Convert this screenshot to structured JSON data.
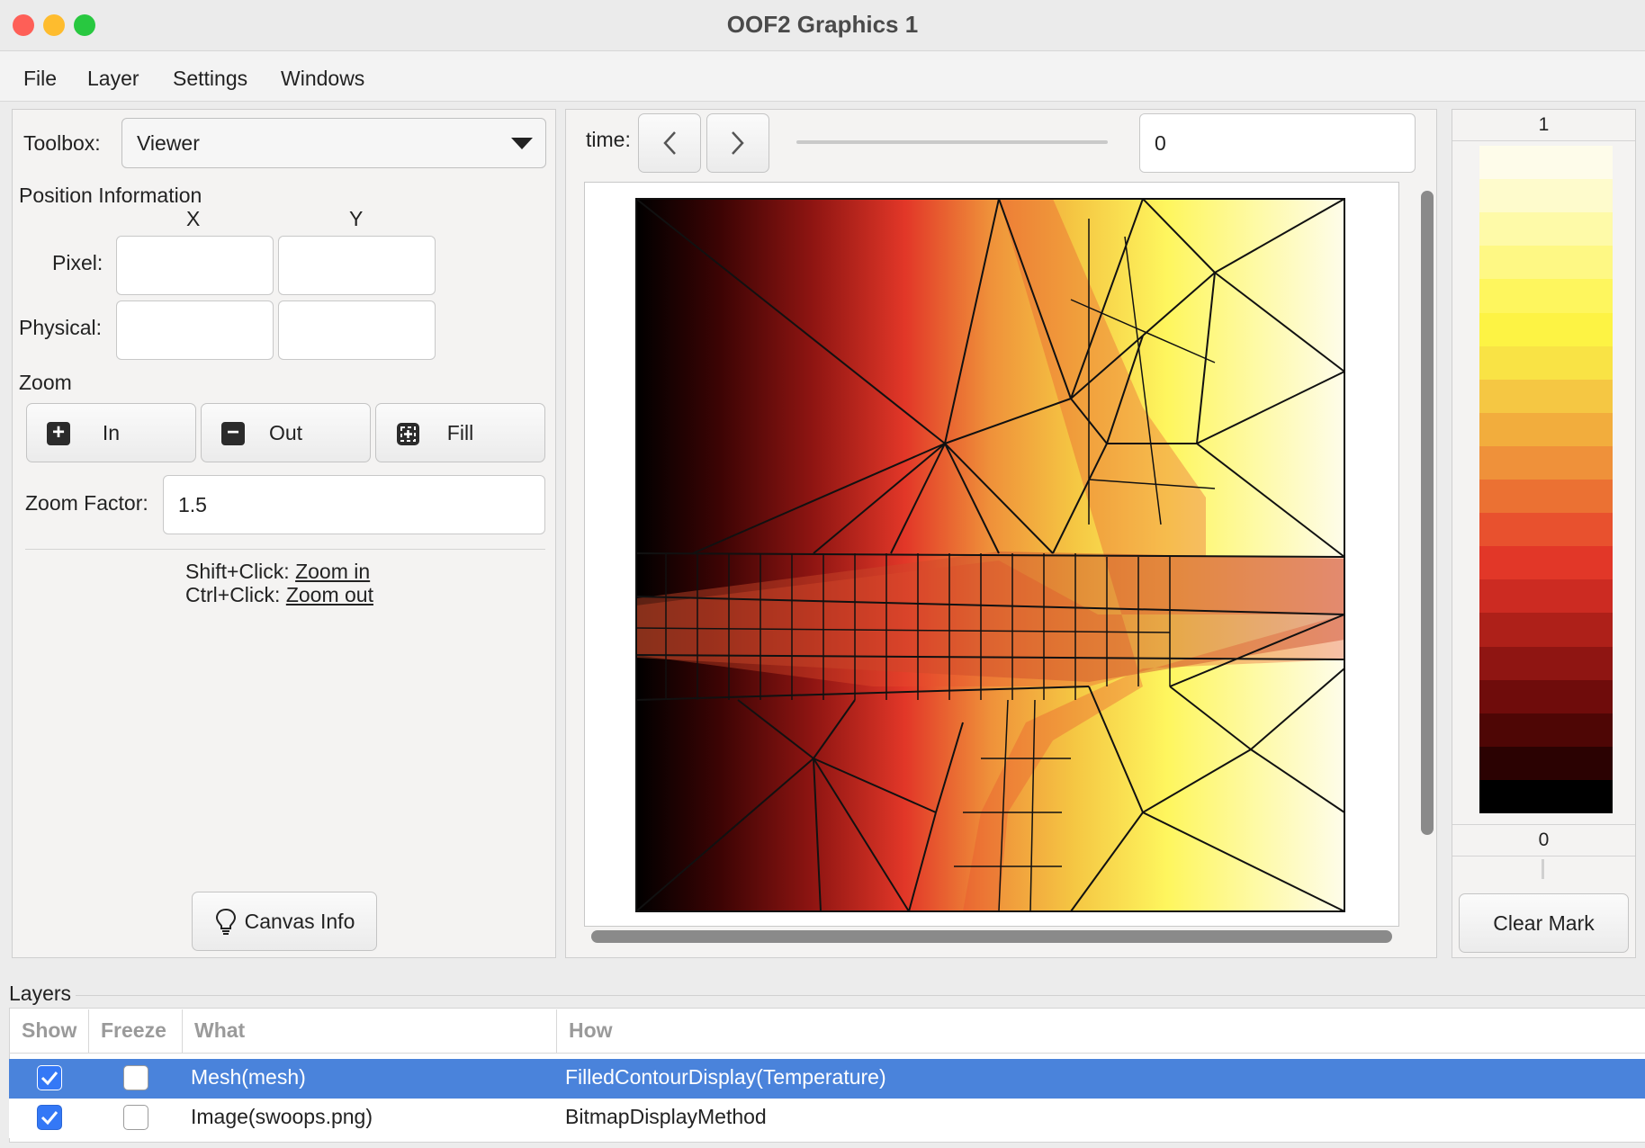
{
  "window": {
    "title": "OOF2 Graphics 1"
  },
  "menu": [
    "File",
    "Layer",
    "Settings",
    "Windows"
  ],
  "toolbox": {
    "label": "Toolbox:",
    "selected": "Viewer",
    "position_title": "Position Information",
    "col_x": "X",
    "col_y": "Y",
    "pixel_label": "Pixel:",
    "physical_label": "Physical:",
    "pixel_x": "",
    "pixel_y": "",
    "physical_x": "",
    "physical_y": "",
    "zoom_title": "Zoom",
    "zoom_in": "In",
    "zoom_out": "Out",
    "zoom_fill": "Fill",
    "zoom_factor_label": "Zoom Factor:",
    "zoom_factor": "1.5",
    "hint1_prefix": "Shift+Click:",
    "hint1_link": "Zoom in",
    "hint2_prefix": "Ctrl+Click:",
    "hint2_link": "Zoom out",
    "canvas_info": "Canvas Info"
  },
  "time": {
    "label": "time:",
    "value": "0"
  },
  "colorbar": {
    "max_label": "1",
    "min_label": "0",
    "clear_mark": "Clear Mark",
    "colors": [
      "#fefcea",
      "#fefbcc",
      "#fefaa8",
      "#fef884",
      "#fef65e",
      "#fdf344",
      "#f9e345",
      "#f5c743",
      "#f2ad3d",
      "#ef913a",
      "#eb7133",
      "#e8512e",
      "#e23728",
      "#cc2b22",
      "#ae2019",
      "#8f1512",
      "#6f0c0b",
      "#4e0605",
      "#2b0202",
      "#000000"
    ]
  },
  "layers": {
    "title": "Layers",
    "headers": [
      "Show",
      "Freeze",
      "What",
      "How"
    ],
    "rows": [
      {
        "show": true,
        "freeze": false,
        "what": "Mesh(mesh)",
        "how": "FilledContourDisplay(Temperature)",
        "selected": true
      },
      {
        "show": true,
        "freeze": false,
        "what": "Image(swoops.png)",
        "how": "BitmapDisplayMethod",
        "selected": false
      }
    ]
  }
}
